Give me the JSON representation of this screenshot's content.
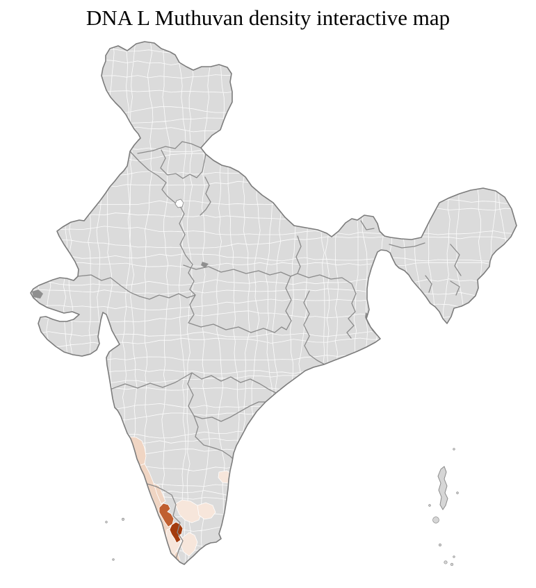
{
  "title": "DNA L Muthuvan density interactive map",
  "map": {
    "colors": {
      "sea": "#ffffff",
      "land": "#dbdbdb",
      "district_border": "#ffffff",
      "state_border": "#8a8a8a",
      "outline": "#7b7b7b",
      "terrain_shade": "#8f8f8f",
      "capital_district_fill": "#ffffff",
      "island_fill": "#d6d6d6",
      "density_low": "#f7e6db",
      "density_medium": "#f0d5c3",
      "density_high": "#c05f30",
      "density_highest": "#a43c0e"
    }
  }
}
